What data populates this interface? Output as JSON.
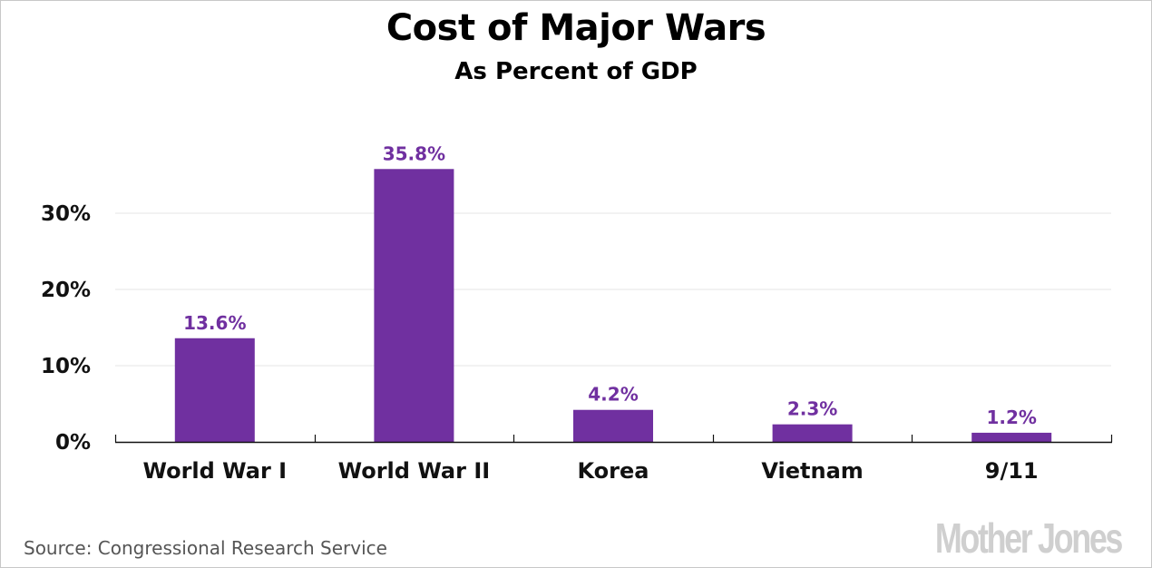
{
  "chart_data": {
    "type": "bar",
    "title": "Cost of Major Wars",
    "subtitle": "As Percent of GDP",
    "categories": [
      "World War I",
      "World War II",
      "Korea",
      "Vietnam",
      "9/11"
    ],
    "values": [
      13.6,
      35.8,
      4.2,
      2.3,
      1.2
    ],
    "data_labels": [
      "13.6%",
      "35.8%",
      "4.2%",
      "2.3%",
      "1.2%"
    ],
    "xlabel": "",
    "ylabel": "",
    "ylim": [
      0,
      40
    ],
    "yticks": [
      0,
      10,
      20,
      30
    ],
    "ytick_labels": [
      "0%",
      "10%",
      "20%",
      "30%"
    ],
    "grid": true,
    "legend": "none",
    "bar_color": "#7030a0",
    "label_color": "#7030a0",
    "gridline_color": "#e6e6e6"
  },
  "footer": {
    "source": "Source: Congressional Research Service",
    "logo": "Mother Jones"
  }
}
